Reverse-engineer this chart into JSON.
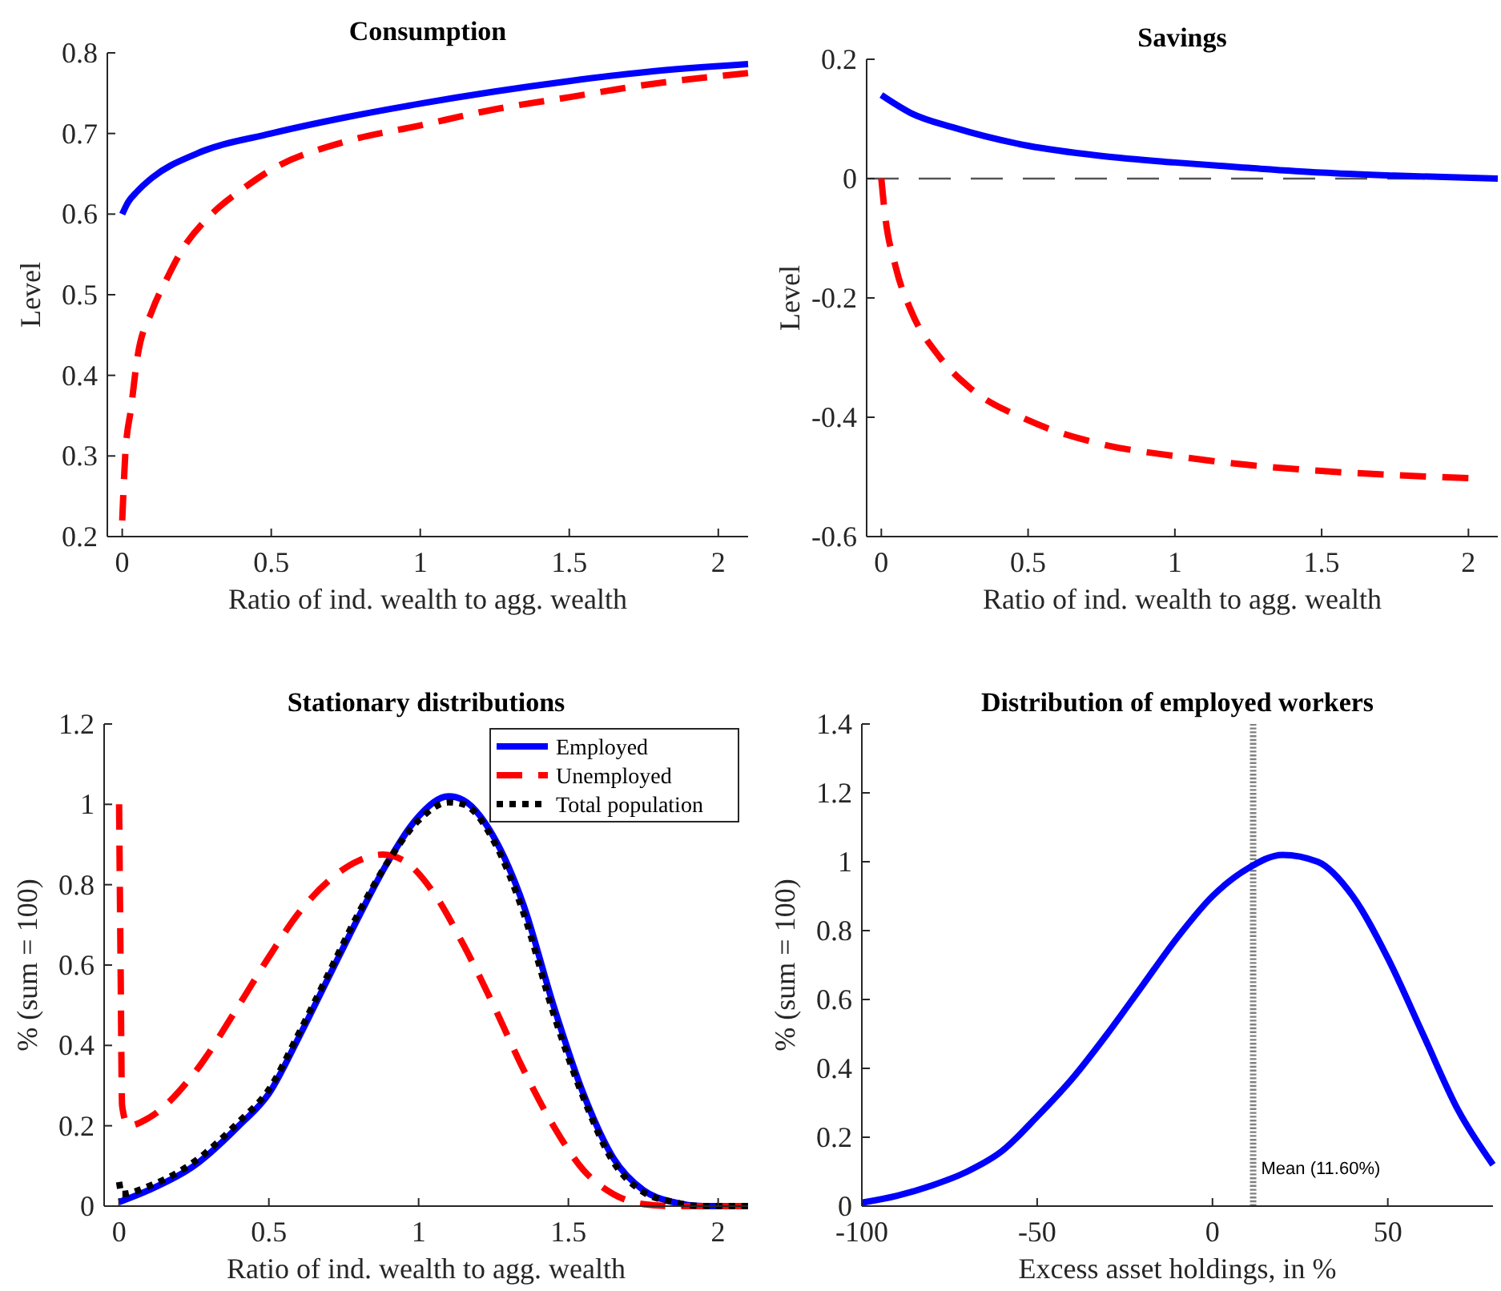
{
  "chart_data": [
    {
      "type": "line",
      "title": "Consumption",
      "xlabel": "Ratio of ind. wealth to agg. wealth",
      "ylabel": "Level",
      "xlim": [
        -0.05,
        2.1
      ],
      "ylim": [
        0.2,
        0.8
      ],
      "xticks": [
        0,
        0.5,
        1,
        1.5,
        2
      ],
      "yticks": [
        0.2,
        0.3,
        0.4,
        0.5,
        0.6,
        0.7,
        0.8
      ],
      "grid": false,
      "legend": false,
      "series": [
        {
          "color": "#0000ff",
          "line_style": "solid",
          "x": [
            0,
            0.02,
            0.05,
            0.1,
            0.25,
            0.5,
            0.75,
            1,
            1.25,
            1.5,
            1.75,
            2.1
          ],
          "values": [
            0.6,
            0.615,
            0.628,
            0.645,
            0.675,
            0.7,
            0.72,
            0.737,
            0.752,
            0.765,
            0.776,
            0.786
          ]
        },
        {
          "color": "#ff0000",
          "line_style": "dashed",
          "x": [
            0,
            0.01,
            0.03,
            0.05,
            0.1,
            0.15,
            0.2,
            0.3,
            0.4,
            0.5,
            0.75,
            1,
            1.25,
            1.5,
            1.75,
            2.1
          ],
          "values": [
            0.22,
            0.3,
            0.36,
            0.42,
            0.48,
            0.52,
            0.555,
            0.6,
            0.63,
            0.655,
            0.69,
            0.71,
            0.73,
            0.745,
            0.76,
            0.775
          ]
        }
      ]
    },
    {
      "type": "line",
      "title": "Savings",
      "xlabel": "Ratio of ind. wealth to agg. wealth",
      "ylabel": "Level",
      "xlim": [
        -0.05,
        2.1
      ],
      "ylim": [
        -0.6,
        0.2
      ],
      "xticks": [
        0,
        0.5,
        1,
        1.5,
        2
      ],
      "yticks": [
        -0.6,
        -0.4,
        -0.2,
        0,
        0.2
      ],
      "grid": false,
      "legend": false,
      "ref_lines": [
        {
          "axis": "y",
          "value": 0,
          "color": "#555555",
          "line_style": "dashed"
        }
      ],
      "series": [
        {
          "color": "#0000ff",
          "line_style": "solid",
          "x": [
            0,
            0.1,
            0.25,
            0.5,
            0.75,
            1,
            1.25,
            1.5,
            1.75,
            2.1
          ],
          "values": [
            0.14,
            0.11,
            0.085,
            0.055,
            0.038,
            0.027,
            0.018,
            0.01,
            0.005,
            0
          ]
        },
        {
          "color": "#ff0000",
          "line_style": "dashed",
          "x": [
            0,
            0.01,
            0.05,
            0.1,
            0.2,
            0.3,
            0.5,
            0.75,
            1,
            1.25,
            1.5,
            1.75,
            2
          ],
          "values": [
            0,
            -0.05,
            -0.15,
            -0.22,
            -0.3,
            -0.35,
            -0.405,
            -0.445,
            -0.465,
            -0.48,
            -0.49,
            -0.497,
            -0.502
          ]
        }
      ]
    },
    {
      "type": "line",
      "title": "Stationary distributions",
      "xlabel": "Ratio of ind. wealth to agg. wealth",
      "ylabel": "% (sum = 100)",
      "xlim": [
        -0.05,
        2.1
      ],
      "ylim": [
        0,
        1.2
      ],
      "xticks": [
        0,
        0.5,
        1,
        1.5,
        2
      ],
      "yticks": [
        0,
        0.2,
        0.4,
        0.6,
        0.8,
        1,
        1.2
      ],
      "grid": false,
      "legend": "top right",
      "series": [
        {
          "name": "Employed",
          "color": "#0000ff",
          "line_style": "solid",
          "x": [
            0,
            0.1,
            0.25,
            0.4,
            0.5,
            0.6,
            0.7,
            0.8,
            0.9,
            1,
            1.1,
            1.15,
            1.25,
            1.35,
            1.45,
            1.55,
            1.65,
            1.75,
            1.85,
            1.95,
            2.1
          ],
          "values": [
            0.01,
            0.04,
            0.1,
            0.2,
            0.28,
            0.42,
            0.57,
            0.72,
            0.86,
            0.97,
            1.02,
            1.01,
            0.92,
            0.75,
            0.5,
            0.28,
            0.12,
            0.04,
            0.01,
            0,
            0
          ]
        },
        {
          "name": "Unemployed",
          "color": "#ff0000",
          "line_style": "dashed",
          "x": [
            0,
            0.005,
            0.01,
            0.03,
            0.1,
            0.25,
            0.4,
            0.5,
            0.6,
            0.7,
            0.8,
            0.88,
            0.95,
            1.05,
            1.15,
            1.25,
            1.35,
            1.45,
            1.55,
            1.65,
            1.75,
            1.85,
            2.1
          ],
          "values": [
            1,
            0.6,
            0.25,
            0.2,
            0.22,
            0.33,
            0.5,
            0.62,
            0.73,
            0.81,
            0.86,
            0.875,
            0.86,
            0.78,
            0.65,
            0.5,
            0.34,
            0.2,
            0.09,
            0.03,
            0.005,
            0,
            0
          ]
        },
        {
          "name": "Total population",
          "color": "#000000",
          "line_style": "dotted",
          "x": [
            0,
            0.01,
            0.1,
            0.25,
            0.4,
            0.5,
            0.6,
            0.7,
            0.8,
            0.9,
            1,
            1.1,
            1.15,
            1.25,
            1.35,
            1.45,
            1.55,
            1.65,
            1.75,
            1.85,
            1.95,
            2.1
          ],
          "values": [
            0.06,
            0.03,
            0.05,
            0.11,
            0.21,
            0.29,
            0.43,
            0.58,
            0.73,
            0.86,
            0.96,
            1.005,
            1,
            0.91,
            0.73,
            0.48,
            0.27,
            0.11,
            0.035,
            0.01,
            0,
            0
          ]
        }
      ]
    },
    {
      "type": "line",
      "title": "Distribution of employed workers",
      "xlabel": "Excess asset holdings, in %",
      "ylabel": "% (sum = 100)",
      "xlim": [
        -100,
        80
      ],
      "ylim": [
        0,
        1.4
      ],
      "xticks": [
        -100,
        -50,
        0,
        50
      ],
      "yticks": [
        0,
        0.2,
        0.4,
        0.6,
        0.8,
        1,
        1.2,
        1.4
      ],
      "grid": false,
      "legend": false,
      "ref_lines": [
        {
          "axis": "x",
          "value": 11.6,
          "label": "Mean (11.60%)",
          "color": "#808080",
          "line_style": "dotted"
        }
      ],
      "series": [
        {
          "color": "#0000ff",
          "line_style": "solid",
          "x": [
            -100,
            -90,
            -80,
            -70,
            -60,
            -50,
            -40,
            -30,
            -20,
            -10,
            0,
            10,
            20,
            30,
            40,
            50,
            60,
            70,
            80
          ],
          "values": [
            0.01,
            0.03,
            0.06,
            0.1,
            0.16,
            0.26,
            0.37,
            0.5,
            0.64,
            0.78,
            0.9,
            0.98,
            1.02,
            1,
            0.9,
            0.72,
            0.5,
            0.28,
            0.12
          ]
        }
      ]
    }
  ]
}
